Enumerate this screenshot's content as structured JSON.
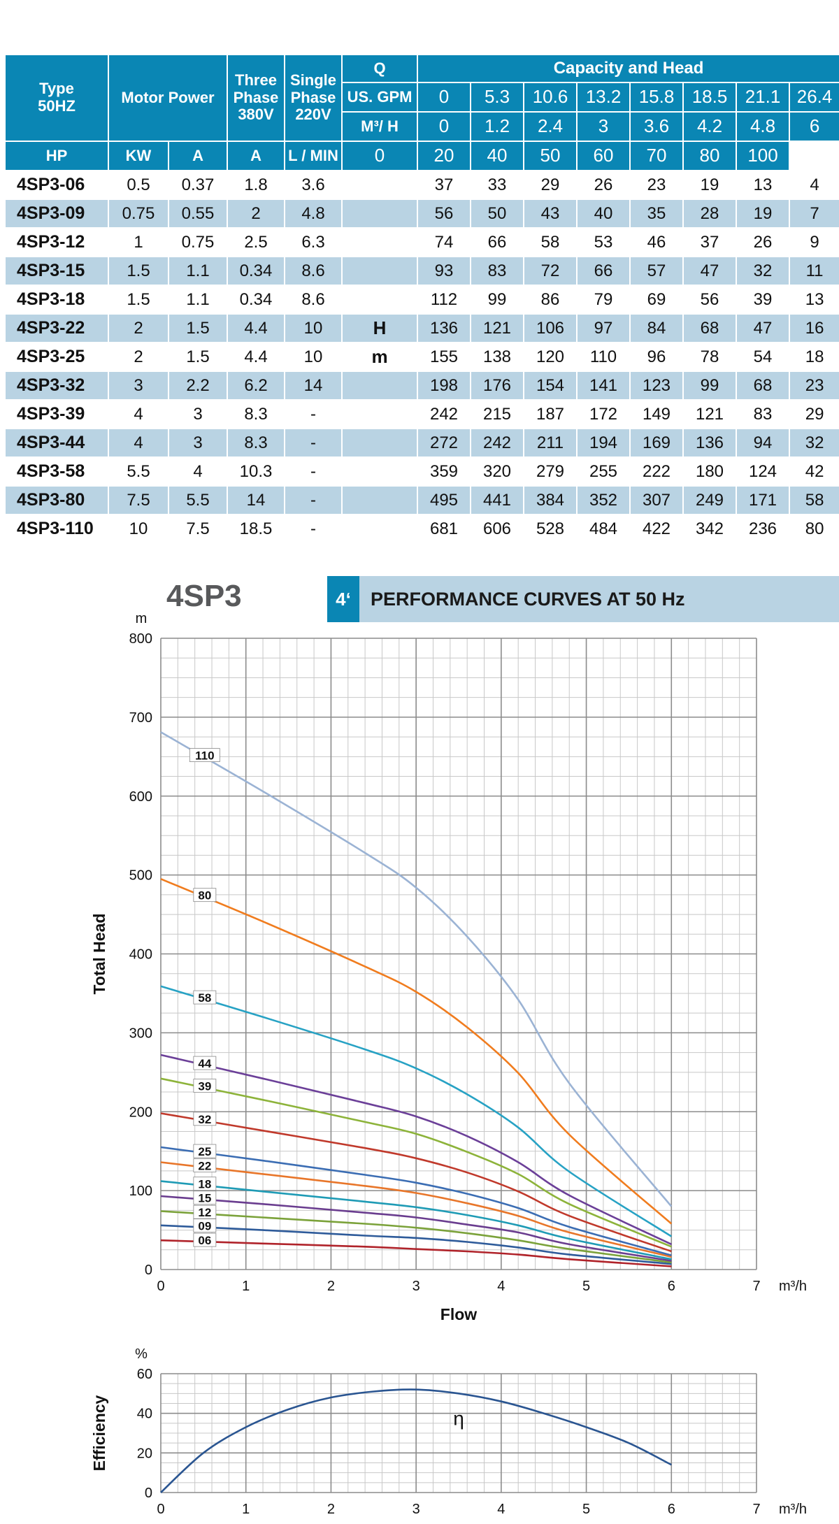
{
  "table": {
    "header": {
      "type": "Type",
      "type_sub": "50HZ",
      "motor_power": "Motor Power",
      "three_phase": [
        "Three",
        "Phase",
        "380V"
      ],
      "single_phase": [
        "Single",
        "Phase",
        "220V"
      ],
      "q": "Q",
      "capacity_and_head": "Capacity and Head",
      "hp": "HP",
      "kw": "KW",
      "a1": "A",
      "a2": "A",
      "unit_gpm": "US. GPM",
      "unit_m3h": "M³/ H",
      "unit_lmin": "L / MIN",
      "gpm": [
        "0",
        "5.3",
        "10.6",
        "13.2",
        "15.8",
        "18.5",
        "21.1",
        "26.4"
      ],
      "m3h": [
        "0",
        "1.2",
        "2.4",
        "3",
        "3.6",
        "4.2",
        "4.8",
        "6"
      ],
      "lmin": [
        "0",
        "20",
        "40",
        "50",
        "60",
        "70",
        "80",
        "100"
      ]
    },
    "head_label_h": "H",
    "head_label_m": "m",
    "rows": [
      {
        "type": "4SP3-06",
        "hp": "0.5",
        "kw": "0.37",
        "a3": "1.8",
        "a1": "3.6",
        "heads": [
          "37",
          "33",
          "29",
          "26",
          "23",
          "19",
          "13",
          "4"
        ]
      },
      {
        "type": "4SP3-09",
        "hp": "0.75",
        "kw": "0.55",
        "a3": "2",
        "a1": "4.8",
        "heads": [
          "56",
          "50",
          "43",
          "40",
          "35",
          "28",
          "19",
          "7"
        ]
      },
      {
        "type": "4SP3-12",
        "hp": "1",
        "kw": "0.75",
        "a3": "2.5",
        "a1": "6.3",
        "heads": [
          "74",
          "66",
          "58",
          "53",
          "46",
          "37",
          "26",
          "9"
        ]
      },
      {
        "type": "4SP3-15",
        "hp": "1.5",
        "kw": "1.1",
        "a3": "0.34",
        "a1": "8.6",
        "heads": [
          "93",
          "83",
          "72",
          "66",
          "57",
          "47",
          "32",
          "11"
        ]
      },
      {
        "type": "4SP3-18",
        "hp": "1.5",
        "kw": "1.1",
        "a3": "0.34",
        "a1": "8.6",
        "heads": [
          "112",
          "99",
          "86",
          "79",
          "69",
          "56",
          "39",
          "13"
        ]
      },
      {
        "type": "4SP3-22",
        "hp": "2",
        "kw": "1.5",
        "a3": "4.4",
        "a1": "10",
        "heads": [
          "136",
          "121",
          "106",
          "97",
          "84",
          "68",
          "47",
          "16"
        ]
      },
      {
        "type": "4SP3-25",
        "hp": "2",
        "kw": "1.5",
        "a3": "4.4",
        "a1": "10",
        "heads": [
          "155",
          "138",
          "120",
          "110",
          "96",
          "78",
          "54",
          "18"
        ]
      },
      {
        "type": "4SP3-32",
        "hp": "3",
        "kw": "2.2",
        "a3": "6.2",
        "a1": "14",
        "heads": [
          "198",
          "176",
          "154",
          "141",
          "123",
          "99",
          "68",
          "23"
        ]
      },
      {
        "type": "4SP3-39",
        "hp": "4",
        "kw": "3",
        "a3": "8.3",
        "a1": "-",
        "heads": [
          "242",
          "215",
          "187",
          "172",
          "149",
          "121",
          "83",
          "29"
        ]
      },
      {
        "type": "4SP3-44",
        "hp": "4",
        "kw": "3",
        "a3": "8.3",
        "a1": "-",
        "heads": [
          "272",
          "242",
          "211",
          "194",
          "169",
          "136",
          "94",
          "32"
        ]
      },
      {
        "type": "4SP3-58",
        "hp": "5.5",
        "kw": "4",
        "a3": "10.3",
        "a1": "-",
        "heads": [
          "359",
          "320",
          "279",
          "255",
          "222",
          "180",
          "124",
          "42"
        ]
      },
      {
        "type": "4SP3-80",
        "hp": "7.5",
        "kw": "5.5",
        "a3": "14",
        "a1": "-",
        "heads": [
          "495",
          "441",
          "384",
          "352",
          "307",
          "249",
          "171",
          "58"
        ]
      },
      {
        "type": "4SP3-110",
        "hp": "10",
        "kw": "7.5",
        "a3": "18.5",
        "a1": "-",
        "heads": [
          "681",
          "606",
          "528",
          "484",
          "422",
          "342",
          "236",
          "80"
        ]
      }
    ]
  },
  "chart_header": {
    "model": "4SP3",
    "banner_num": "4ʻ",
    "banner_text": "PERFORMANCE CURVES AT 50 Hz"
  },
  "colors": {
    "header_bg": "#0a86b4",
    "row_alt_bg": "#b9d3e3",
    "grid_major": "#8c8c8c",
    "grid_minor": "#c8c8c8"
  },
  "chart_data": [
    {
      "type": "line",
      "title": "PERFORMANCE CURVES AT 50 Hz",
      "xlabel": "Flow",
      "x_unit": "m³/h",
      "ylabel": "Total Head",
      "y_unit": "m",
      "xlim": [
        0,
        7
      ],
      "ylim": [
        0,
        800
      ],
      "x_ticks": [
        "0",
        "1",
        "2",
        "3",
        "4",
        "5",
        "6",
        "7"
      ],
      "y_ticks": [
        "0",
        "100",
        "200",
        "300",
        "400",
        "500",
        "600",
        "700",
        "800"
      ],
      "x": [
        0,
        1.2,
        2.4,
        3,
        3.6,
        4.2,
        4.8,
        6
      ],
      "series": [
        {
          "name": "06",
          "color": "#b0232a",
          "values": [
            37,
            33,
            29,
            26,
            23,
            19,
            13,
            4
          ]
        },
        {
          "name": "09",
          "color": "#2e5b9a",
          "values": [
            56,
            50,
            43,
            40,
            35,
            28,
            19,
            7
          ]
        },
        {
          "name": "12",
          "color": "#7ba23a",
          "values": [
            74,
            66,
            58,
            53,
            46,
            37,
            26,
            9
          ]
        },
        {
          "name": "15",
          "color": "#6a3d8f",
          "values": [
            93,
            83,
            72,
            66,
            57,
            47,
            32,
            11
          ]
        },
        {
          "name": "18",
          "color": "#1f9bb5",
          "values": [
            112,
            99,
            86,
            79,
            69,
            56,
            39,
            13
          ]
        },
        {
          "name": "22",
          "color": "#e8762a",
          "values": [
            136,
            121,
            106,
            97,
            84,
            68,
            47,
            16
          ]
        },
        {
          "name": "25",
          "color": "#3b6db3",
          "values": [
            155,
            138,
            120,
            110,
            96,
            78,
            54,
            18
          ]
        },
        {
          "name": "32",
          "color": "#c0392b",
          "values": [
            198,
            176,
            154,
            141,
            123,
            99,
            68,
            23
          ]
        },
        {
          "name": "39",
          "color": "#8db33a",
          "values": [
            242,
            215,
            187,
            172,
            149,
            121,
            83,
            29
          ]
        },
        {
          "name": "44",
          "color": "#6b3f98",
          "values": [
            272,
            242,
            211,
            194,
            169,
            136,
            94,
            32
          ]
        },
        {
          "name": "58",
          "color": "#27a2c4",
          "values": [
            359,
            320,
            279,
            255,
            222,
            180,
            124,
            42
          ]
        },
        {
          "name": "80",
          "color": "#f07c1e",
          "values": [
            495,
            441,
            384,
            352,
            307,
            249,
            171,
            58
          ]
        },
        {
          "name": "110",
          "color": "#9bb3d4",
          "values": [
            681,
            606,
            528,
            484,
            422,
            342,
            236,
            80
          ]
        }
      ]
    },
    {
      "type": "line",
      "xlabel": "",
      "x_unit": "m³/h",
      "ylabel": "Efficiency",
      "y_unit": "%",
      "xlim": [
        0,
        7
      ],
      "ylim": [
        0,
        60
      ],
      "x_ticks": [
        "0",
        "1",
        "2",
        "3",
        "4",
        "5",
        "6",
        "7"
      ],
      "y_ticks": [
        "0",
        "20",
        "40",
        "60"
      ],
      "annotation": "η",
      "series": [
        {
          "name": "η",
          "color": "#2a5591",
          "x": [
            0,
            0.5,
            1,
            1.5,
            2,
            2.5,
            3,
            3.5,
            4,
            4.5,
            5,
            5.5,
            6
          ],
          "values": [
            0,
            20,
            33,
            42,
            48,
            51,
            52,
            50,
            46,
            40,
            33,
            25,
            14
          ]
        }
      ]
    }
  ]
}
